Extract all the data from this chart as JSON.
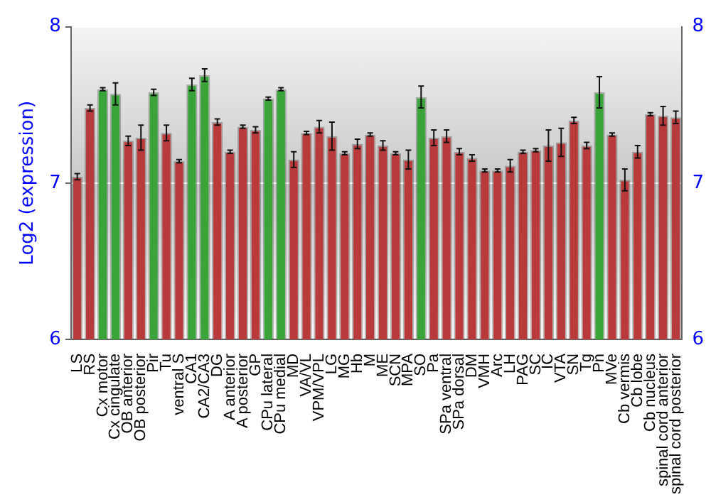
{
  "chart_data": {
    "type": "bar",
    "ylabel": "Log2 (expression)",
    "categories": [
      "LS",
      "RS",
      "Cx motor",
      "Cx cingulate",
      "OB anterior",
      "OB posterior",
      "Pir",
      "Tu",
      "ventral S",
      "CA1",
      "CA2/CA3",
      "DG",
      "A anterior",
      "A posterior",
      "GP",
      "CPu lateral",
      "CPu medial",
      "MD",
      "VA/VL",
      "VPM/VPL",
      "LG",
      "MG",
      "Hb",
      "M",
      "ME",
      "SCN",
      "MPA",
      "SO",
      "Pa",
      "SPa ventral",
      "SPa dorsal",
      "DM",
      "VMH",
      "Arc",
      "LH",
      "PAG",
      "SC",
      "IC",
      "VTA",
      "SN",
      "Tg",
      "Pn",
      "MVe",
      "Cb vermis",
      "Cb lobe",
      "Cb nucleus",
      "spinal cord anterior",
      "spinal cord posterior"
    ],
    "values": [
      7.04,
      7.48,
      7.6,
      7.57,
      7.27,
      7.29,
      7.58,
      7.32,
      7.14,
      7.63,
      7.69,
      7.39,
      7.2,
      7.36,
      7.34,
      7.54,
      7.6,
      7.15,
      7.32,
      7.36,
      7.3,
      7.19,
      7.25,
      7.31,
      7.24,
      7.19,
      7.15,
      7.55,
      7.29,
      7.3,
      7.2,
      7.16,
      7.08,
      7.08,
      7.11,
      7.2,
      7.21,
      7.24,
      7.26,
      7.4,
      7.24,
      7.58,
      7.31,
      7.02,
      7.2,
      7.44,
      7.43,
      7.42
    ],
    "errors": [
      0.02,
      0.02,
      0.01,
      0.07,
      0.03,
      0.08,
      0.02,
      0.05,
      0.01,
      0.04,
      0.04,
      0.02,
      0.01,
      0.01,
      0.02,
      0.01,
      0.01,
      0.05,
      0.01,
      0.04,
      0.09,
      0.01,
      0.03,
      0.01,
      0.03,
      0.01,
      0.06,
      0.07,
      0.05,
      0.04,
      0.02,
      0.02,
      0.01,
      0.01,
      0.04,
      0.01,
      0.01,
      0.1,
      0.09,
      0.02,
      0.02,
      0.1,
      0.01,
      0.07,
      0.04,
      0.01,
      0.06,
      0.04
    ],
    "colors": [
      "#b83a3a",
      "#b83a3a",
      "#3aa33a",
      "#3aa33a",
      "#b83a3a",
      "#b83a3a",
      "#3aa33a",
      "#b83a3a",
      "#b83a3a",
      "#3aa33a",
      "#3aa33a",
      "#b83a3a",
      "#b83a3a",
      "#b83a3a",
      "#b83a3a",
      "#3aa33a",
      "#3aa33a",
      "#b83a3a",
      "#b83a3a",
      "#b83a3a",
      "#b83a3a",
      "#b83a3a",
      "#b83a3a",
      "#b83a3a",
      "#b83a3a",
      "#b83a3a",
      "#b83a3a",
      "#3aa33a",
      "#b83a3a",
      "#b83a3a",
      "#b83a3a",
      "#b83a3a",
      "#b83a3a",
      "#b83a3a",
      "#b83a3a",
      "#b83a3a",
      "#b83a3a",
      "#b83a3a",
      "#b83a3a",
      "#b83a3a",
      "#b83a3a",
      "#3aa33a",
      "#b83a3a",
      "#b83a3a",
      "#b83a3a",
      "#b83a3a",
      "#b83a3a",
      "#b83a3a"
    ],
    "ylim": [
      6,
      8
    ],
    "yticks": [
      6,
      7,
      8
    ],
    "y2lim": [
      6,
      8
    ],
    "y2ticks": [
      6,
      7,
      8
    ],
    "grid": "y",
    "legend": false
  }
}
